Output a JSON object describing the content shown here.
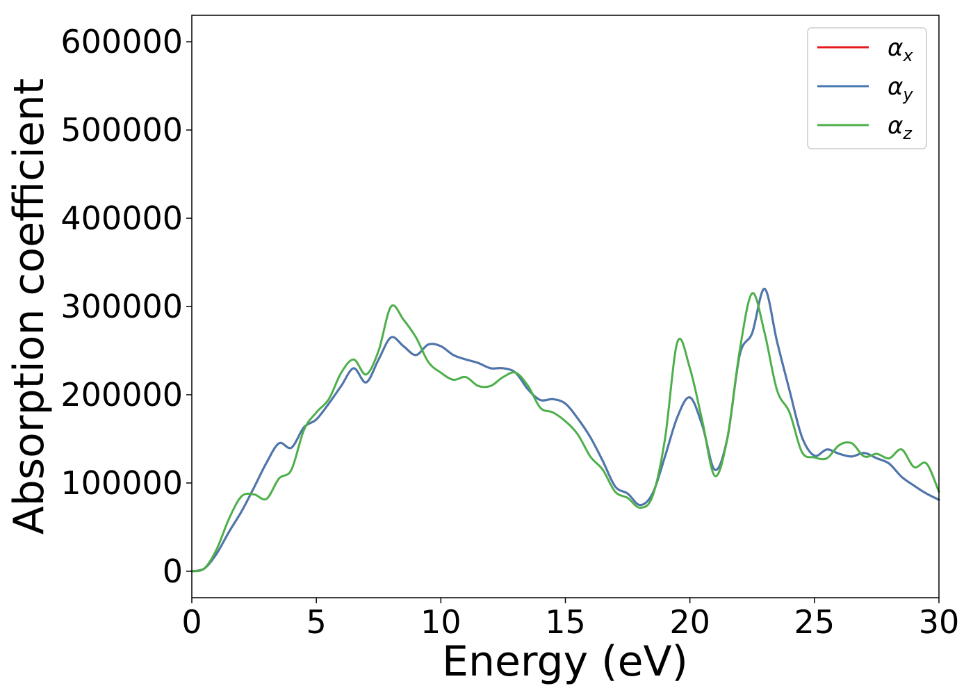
{
  "chart_data": {
    "type": "line",
    "xlabel": "Energy (eV)",
    "ylabel": "Absorption coefficient",
    "xlim": [
      0,
      30
    ],
    "ylim": [
      -30000,
      630000
    ],
    "xticks": [
      0,
      5,
      10,
      15,
      20,
      25,
      30
    ],
    "yticks": [
      0,
      100000,
      200000,
      300000,
      400000,
      500000,
      600000
    ],
    "x_tick_labels": [
      "0",
      "5",
      "10",
      "15",
      "20",
      "25",
      "30"
    ],
    "y_tick_labels": [
      "0",
      "100000",
      "200000",
      "300000",
      "400000",
      "500000",
      "600000"
    ],
    "grid": false,
    "legend": {
      "placement": "top-right"
    },
    "series": [
      {
        "name": "αx",
        "legend_main": "α",
        "legend_sub": "x",
        "color": "#e41a1c",
        "x": [
          0,
          0.5,
          1,
          1.5,
          2,
          2.5,
          3,
          3.5,
          4,
          4.5,
          5,
          5.5,
          6,
          6.5,
          7,
          7.5,
          8,
          8.5,
          9,
          9.5,
          10,
          10.5,
          11,
          11.5,
          12,
          12.5,
          13,
          13.5,
          14,
          14.5,
          15,
          15.5,
          16,
          16.5,
          17,
          17.5,
          18,
          18.5,
          19,
          19.5,
          20,
          20.5,
          21,
          21.5,
          22,
          22.5,
          23,
          23.5,
          24,
          24.5,
          25,
          25.5,
          26,
          26.5,
          27,
          27.5,
          28,
          28.5,
          29,
          29.5,
          30
        ],
        "y": [
          0,
          3000,
          20000,
          45000,
          68000,
          95000,
          123000,
          145000,
          140000,
          163000,
          172000,
          190000,
          210000,
          230000,
          214000,
          240000,
          265000,
          255000,
          245000,
          257000,
          255000,
          245000,
          240000,
          236000,
          230000,
          230000,
          225000,
          206000,
          194000,
          195000,
          190000,
          173000,
          152000,
          125000,
          96000,
          88000,
          75000,
          88000,
          130000,
          175000,
          197000,
          165000,
          115000,
          150000,
          245000,
          270000,
          320000,
          260000,
          205000,
          152000,
          131000,
          138000,
          133000,
          130000,
          134000,
          128000,
          122000,
          107000,
          97000,
          88000,
          81000
        ]
      },
      {
        "name": "αy",
        "legend_main": "α",
        "legend_sub": "y",
        "color": "#4878b0",
        "x": [
          0,
          0.5,
          1,
          1.5,
          2,
          2.5,
          3,
          3.5,
          4,
          4.5,
          5,
          5.5,
          6,
          6.5,
          7,
          7.5,
          8,
          8.5,
          9,
          9.5,
          10,
          10.5,
          11,
          11.5,
          12,
          12.5,
          13,
          13.5,
          14,
          14.5,
          15,
          15.5,
          16,
          16.5,
          17,
          17.5,
          18,
          18.5,
          19,
          19.5,
          20,
          20.5,
          21,
          21.5,
          22,
          22.5,
          23,
          23.5,
          24,
          24.5,
          25,
          25.5,
          26,
          26.5,
          27,
          27.5,
          28,
          28.5,
          29,
          29.5,
          30
        ],
        "y": [
          0,
          3000,
          20000,
          45000,
          68000,
          95000,
          123000,
          145000,
          140000,
          163000,
          172000,
          190000,
          210000,
          230000,
          214000,
          240000,
          265000,
          255000,
          245000,
          257000,
          255000,
          245000,
          240000,
          236000,
          230000,
          230000,
          225000,
          206000,
          194000,
          195000,
          190000,
          173000,
          152000,
          125000,
          96000,
          88000,
          75000,
          88000,
          130000,
          175000,
          197000,
          165000,
          115000,
          150000,
          245000,
          270000,
          320000,
          260000,
          205000,
          152000,
          131000,
          138000,
          133000,
          130000,
          134000,
          128000,
          122000,
          107000,
          97000,
          88000,
          81000
        ]
      },
      {
        "name": "αz",
        "legend_main": "α",
        "legend_sub": "z",
        "color": "#4daf4a",
        "x": [
          0,
          0.5,
          1,
          1.5,
          2,
          2.5,
          3,
          3.5,
          4,
          4.5,
          5,
          5.5,
          6,
          6.5,
          7,
          7.5,
          8,
          8.5,
          9,
          9.5,
          10,
          10.5,
          11,
          11.5,
          12,
          12.5,
          13,
          13.5,
          14,
          14.5,
          15,
          15.5,
          16,
          16.5,
          17,
          17.5,
          18,
          18.5,
          19,
          19.5,
          20,
          20.5,
          21,
          21.5,
          22,
          22.5,
          23,
          23.5,
          24,
          24.5,
          25,
          25.5,
          26,
          26.5,
          27,
          27.5,
          28,
          28.5,
          29,
          29.5,
          30
        ],
        "y": [
          0,
          3000,
          25000,
          60000,
          85000,
          87000,
          82000,
          105000,
          115000,
          160000,
          180000,
          195000,
          225000,
          240000,
          223000,
          250000,
          300000,
          285000,
          265000,
          237000,
          225000,
          217000,
          220000,
          210000,
          210000,
          220000,
          225000,
          210000,
          185000,
          180000,
          170000,
          155000,
          130000,
          115000,
          90000,
          83000,
          72000,
          85000,
          150000,
          260000,
          230000,
          170000,
          108000,
          150000,
          250000,
          315000,
          270000,
          205000,
          180000,
          135000,
          129000,
          128000,
          143000,
          145000,
          130000,
          133000,
          128000,
          138000,
          118000,
          122000,
          90000
        ]
      }
    ]
  }
}
